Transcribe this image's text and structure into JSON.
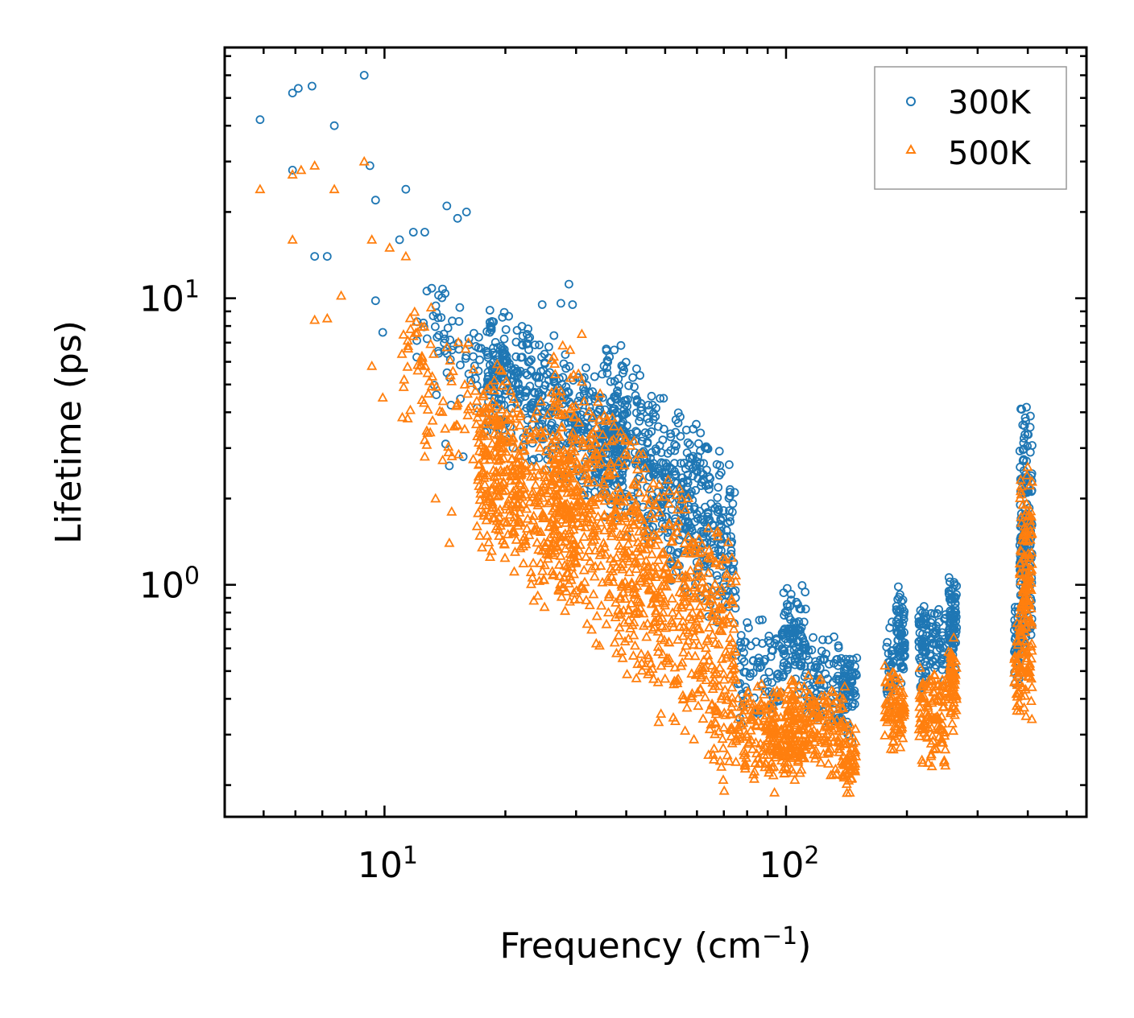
{
  "chart_data": {
    "type": "scatter",
    "title": "",
    "xlabel": "Frequency (cm",
    "xlabel_sup": "−1",
    "xlabel_end": ")",
    "ylabel": "Lifetime (ps)",
    "xscale": "log",
    "yscale": "log",
    "xlim": [
      4.0,
      560.0
    ],
    "ylim": [
      0.155,
      75.0
    ],
    "x_ticks": [
      {
        "base": "10",
        "exp": "1",
        "value": 10
      },
      {
        "base": "10",
        "exp": "2",
        "value": 100
      }
    ],
    "y_ticks": [
      {
        "base": "10",
        "exp": "0",
        "value": 1
      },
      {
        "base": "10",
        "exp": "1",
        "value": 10
      }
    ],
    "legend_position": "top-right",
    "series": [
      {
        "name": "300K",
        "marker": "circle",
        "color": "#1f77b4",
        "outliers": [
          [
            4.9,
            42
          ],
          [
            5.9,
            52
          ],
          [
            6.1,
            54
          ],
          [
            6.6,
            55
          ],
          [
            7.5,
            40
          ],
          [
            8.9,
            60
          ],
          [
            5.9,
            28
          ],
          [
            9.2,
            29
          ],
          [
            9.5,
            22
          ],
          [
            11.3,
            24
          ],
          [
            6.7,
            14
          ],
          [
            7.2,
            14
          ],
          [
            14.3,
            21
          ],
          [
            16.0,
            20
          ],
          [
            15.2,
            19
          ],
          [
            10.9,
            16
          ],
          [
            11.8,
            17
          ],
          [
            12.6,
            17
          ],
          [
            9.5,
            9.8
          ],
          [
            9.9,
            7.6
          ],
          [
            12.5,
            8.2
          ],
          [
            28.8,
            11.2
          ],
          [
            29.4,
            9.5
          ],
          [
            24.7,
            9.5
          ],
          [
            27.5,
            9.6
          ],
          [
            14.2,
            3.1
          ],
          [
            14.5,
            2.6
          ],
          [
            15.7,
            2.8
          ]
        ],
        "bands": [
          {
            "x0": 12,
            "x1": 20,
            "y0": 3.5,
            "y1": 12,
            "n": 90,
            "slope": -0.9
          },
          {
            "x0": 18,
            "x1": 40,
            "y0": 2.2,
            "y1": 7.5,
            "n": 480,
            "slope": -1.0
          },
          {
            "x0": 35,
            "x1": 75,
            "y0": 1.0,
            "y1": 4.8,
            "n": 520,
            "slope": -1.4
          },
          {
            "x0": 75,
            "x1": 100,
            "y0": 0.32,
            "y1": 0.8,
            "n": 90,
            "slope": 0.3
          },
          {
            "x0": 98,
            "x1": 112,
            "y0": 0.4,
            "y1": 1.1,
            "n": 90,
            "slope": -0.8
          },
          {
            "x0": 112,
            "x1": 146,
            "y0": 0.3,
            "y1": 0.7,
            "n": 110,
            "slope": -0.8
          },
          {
            "x0": 138,
            "x1": 150,
            "y0": 0.33,
            "y1": 0.6,
            "n": 40,
            "slope": 0.0
          },
          {
            "x0": 178,
            "x1": 186,
            "y0": 0.35,
            "y1": 0.8,
            "n": 30,
            "slope": 0.0
          },
          {
            "x0": 188,
            "x1": 198,
            "y0": 0.42,
            "y1": 1.05,
            "n": 70,
            "slope": 0.0
          },
          {
            "x0": 214,
            "x1": 224,
            "y0": 0.4,
            "y1": 0.98,
            "n": 60,
            "slope": 0.0
          },
          {
            "x0": 228,
            "x1": 250,
            "y0": 0.45,
            "y1": 0.85,
            "n": 50,
            "slope": 0.0
          },
          {
            "x0": 254,
            "x1": 266,
            "y0": 0.45,
            "y1": 1.2,
            "n": 80,
            "slope": 0.0
          },
          {
            "x0": 370,
            "x1": 382,
            "y0": 0.4,
            "y1": 1.0,
            "n": 40,
            "slope": 0.0
          },
          {
            "x0": 382,
            "x1": 410,
            "y0": 0.5,
            "y1": 4.6,
            "n": 170,
            "slope": 0.0
          }
        ]
      },
      {
        "name": "500K",
        "marker": "triangle",
        "color": "#ff7f0e",
        "outliers": [
          [
            4.9,
            24
          ],
          [
            5.9,
            27
          ],
          [
            6.2,
            28
          ],
          [
            6.7,
            29
          ],
          [
            7.5,
            24
          ],
          [
            8.9,
            30
          ],
          [
            5.9,
            16
          ],
          [
            9.3,
            16
          ],
          [
            10.3,
            15
          ],
          [
            11.3,
            14
          ],
          [
            7.8,
            10.2
          ],
          [
            6.7,
            8.4
          ],
          [
            7.2,
            8.5
          ],
          [
            9.3,
            5.8
          ],
          [
            9.9,
            4.5
          ],
          [
            12.6,
            2.8
          ],
          [
            13.4,
            2.0
          ],
          [
            14.7,
            1.8
          ],
          [
            14.5,
            1.4
          ],
          [
            17.0,
            1.6
          ],
          [
            17.5,
            1.35
          ],
          [
            12.6,
            3.2
          ],
          [
            13.0,
            3.4
          ],
          [
            31.0,
            7.5
          ],
          [
            29.0,
            6.6
          ]
        ],
        "bands": [
          {
            "x0": 11,
            "x1": 20,
            "y0": 2.4,
            "y1": 8.5,
            "n": 110,
            "slope": -0.9
          },
          {
            "x0": 17,
            "x1": 30,
            "y0": 0.9,
            "y1": 5.0,
            "n": 420,
            "slope": -1.0
          },
          {
            "x0": 26,
            "x1": 75,
            "y0": 0.36,
            "y1": 3.5,
            "n": 850,
            "slope": -1.5
          },
          {
            "x0": 75,
            "x1": 100,
            "y0": 0.2,
            "y1": 0.5,
            "n": 100,
            "slope": 0.3
          },
          {
            "x0": 88,
            "x1": 112,
            "y0": 0.18,
            "y1": 0.45,
            "n": 130,
            "slope": 0.0
          },
          {
            "x0": 100,
            "x1": 114,
            "y0": 0.22,
            "y1": 0.52,
            "n": 60,
            "slope": 0.0
          },
          {
            "x0": 114,
            "x1": 140,
            "y0": 0.2,
            "y1": 0.5,
            "n": 110,
            "slope": -0.4
          },
          {
            "x0": 138,
            "x1": 150,
            "y0": 0.18,
            "y1": 0.35,
            "n": 50,
            "slope": 0.0
          },
          {
            "x0": 176,
            "x1": 198,
            "y0": 0.26,
            "y1": 0.55,
            "n": 90,
            "slope": 0.0
          },
          {
            "x0": 214,
            "x1": 250,
            "y0": 0.22,
            "y1": 0.55,
            "n": 110,
            "slope": 0.0
          },
          {
            "x0": 254,
            "x1": 266,
            "y0": 0.3,
            "y1": 0.72,
            "n": 60,
            "slope": 0.0
          },
          {
            "x0": 370,
            "x1": 382,
            "y0": 0.35,
            "y1": 0.8,
            "n": 30,
            "slope": 0.0
          },
          {
            "x0": 382,
            "x1": 410,
            "y0": 0.3,
            "y1": 2.7,
            "n": 170,
            "slope": 0.0
          }
        ]
      }
    ]
  }
}
